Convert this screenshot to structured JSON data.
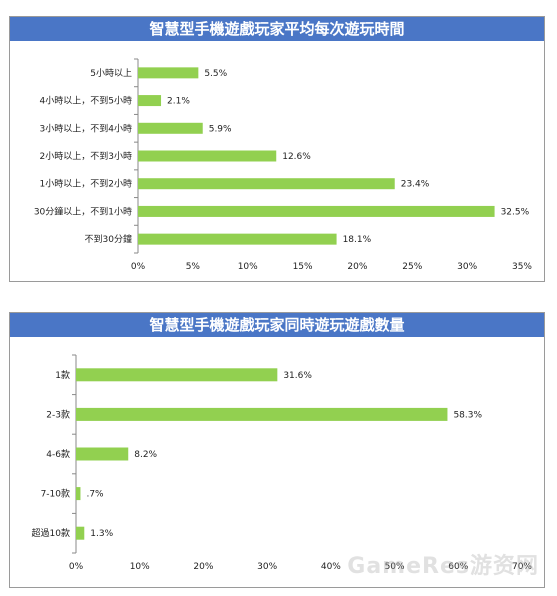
{
  "chart_data": [
    {
      "type": "bar",
      "orientation": "horizontal",
      "title": "智慧型手機遊戲玩家平均每次遊玩時間",
      "categories": [
        "5小時以上",
        "4小時以上，不到5小時",
        "3小時以上，不到4小時",
        "2小時以上，不到3小時",
        "1小時以上，不到2小時",
        "30分鐘以上，不到1小時",
        "不到30分鐘"
      ],
      "values": [
        5.5,
        2.1,
        5.9,
        12.6,
        23.4,
        32.5,
        18.1
      ],
      "value_labels": [
        "5.5%",
        "2.1%",
        "5.9%",
        "12.6%",
        "23.4%",
        "32.5%",
        "18.1%"
      ],
      "xlim": [
        0,
        35
      ],
      "xticks": [
        "0%",
        "5%",
        "10%",
        "15%",
        "20%",
        "25%",
        "30%",
        "35%"
      ],
      "bar_color": "#92d050",
      "grid": false
    },
    {
      "type": "bar",
      "orientation": "horizontal",
      "title": "智慧型手機遊戲玩家同時遊玩遊戲數量",
      "categories": [
        "1款",
        "2-3款",
        "4-6款",
        "7-10款",
        "超過10款"
      ],
      "values": [
        31.6,
        58.3,
        8.2,
        0.7,
        1.3
      ],
      "value_labels": [
        "31.6%",
        "58.3%",
        "8.2%",
        ".7%",
        "1.3%"
      ],
      "xlim": [
        0,
        70
      ],
      "xticks": [
        "0%",
        "10%",
        "20%",
        "30%",
        "40%",
        "50%",
        "60%",
        "70%"
      ],
      "bar_color": "#92d050",
      "grid": false
    }
  ],
  "watermark": "GameRes游资网",
  "colors": {
    "title_bg": "#4a76c6",
    "title_text": "#ffffff",
    "bar": "#92d050",
    "axis": "#888888"
  }
}
